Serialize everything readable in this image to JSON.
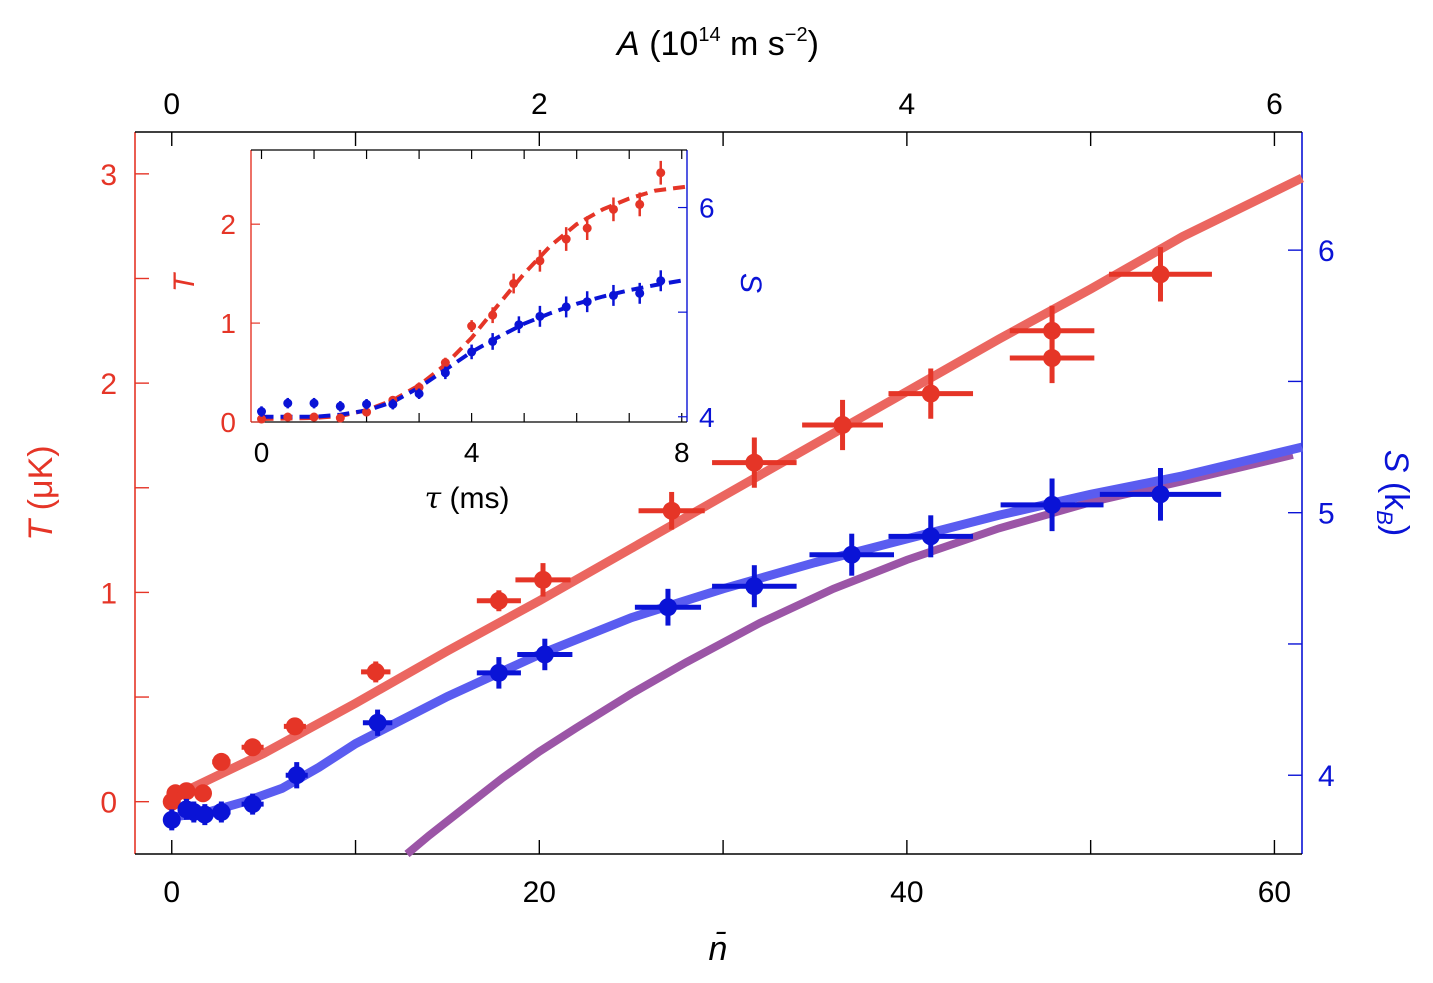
{
  "chart_data": {
    "type": "scatter",
    "colors": {
      "temperature": "#e53527",
      "temperature_fit": "#eb6660",
      "entropy": "#0a13d6",
      "entropy_fit": "#5a5cf0",
      "entropy_limit": "#9b55a6",
      "frame": "#000000"
    },
    "main": {
      "x_axis": {
        "label": "n̄",
        "range": [
          -2,
          61.5
        ],
        "ticks": [
          0,
          20,
          40,
          60
        ],
        "tick_labels": [
          "0",
          "20",
          "40",
          "60"
        ],
        "minor_ticks": [
          10,
          30,
          50
        ]
      },
      "top_axis": {
        "label_symbol": "A",
        "label_unit": "(10",
        "label_exp": "14",
        "label_unit2": " m s",
        "label_exp2": "−2",
        "label_close": ")",
        "ticks": [
          0,
          2,
          4,
          6
        ],
        "tick_labels": [
          "0",
          "2",
          "4",
          "6"
        ],
        "minor_ticks": [
          1,
          3,
          5,
          7
        ],
        "ratio_n_per_A": 10.0
      },
      "left_axis": {
        "label_symbol": "T",
        "label_unit": " (μK)",
        "range": [
          -0.25,
          3.2
        ],
        "ticks": [
          0,
          1,
          2,
          3
        ],
        "tick_labels": [
          "0",
          "1",
          "2",
          "3"
        ],
        "minor_ticks": [
          0.5,
          1.5,
          2.5
        ]
      },
      "right_axis": {
        "label_symbol": "S",
        "label_open": " (k",
        "label_sub": "B",
        "label_close": ")",
        "range": [
          3.7,
          6.45
        ],
        "ticks": [
          4,
          5,
          6
        ],
        "tick_labels": [
          "4",
          "5",
          "6"
        ],
        "minor_ticks": [
          4.5,
          5.5
        ]
      },
      "temperature_points": [
        {
          "x": 0.0,
          "y": 0.0,
          "xerr": 0.3,
          "yerr": 0.03
        },
        {
          "x": 0.2,
          "y": 0.04,
          "xerr": 0.3,
          "yerr": 0.03
        },
        {
          "x": 0.8,
          "y": 0.05,
          "xerr": 0.3,
          "yerr": 0.03
        },
        {
          "x": 1.7,
          "y": 0.04,
          "xerr": 0.4,
          "yerr": 0.03
        },
        {
          "x": 2.7,
          "y": 0.19,
          "xerr": 0.5,
          "yerr": 0.03
        },
        {
          "x": 4.4,
          "y": 0.26,
          "xerr": 0.6,
          "yerr": 0.03
        },
        {
          "x": 6.7,
          "y": 0.36,
          "xerr": 0.6,
          "yerr": 0.03
        },
        {
          "x": 11.1,
          "y": 0.62,
          "xerr": 0.8,
          "yerr": 0.05
        },
        {
          "x": 17.8,
          "y": 0.96,
          "xerr": 1.2,
          "yerr": 0.05
        },
        {
          "x": 20.2,
          "y": 1.06,
          "xerr": 1.5,
          "yerr": 0.08
        },
        {
          "x": 27.2,
          "y": 1.39,
          "xerr": 1.8,
          "yerr": 0.09
        },
        {
          "x": 31.7,
          "y": 1.62,
          "xerr": 2.3,
          "yerr": 0.12
        },
        {
          "x": 36.5,
          "y": 1.8,
          "xerr": 2.2,
          "yerr": 0.12
        },
        {
          "x": 41.3,
          "y": 1.95,
          "xerr": 2.3,
          "yerr": 0.12
        },
        {
          "x": 47.9,
          "y": 2.25,
          "xerr": 2.3,
          "yerr": 0.12
        },
        {
          "x": 47.9,
          "y": 2.12,
          "xerr": 2.3,
          "yerr": 0.12
        },
        {
          "x": 53.8,
          "y": 2.52,
          "xerr": 2.8,
          "yerr": 0.13
        }
      ],
      "entropy_points": [
        {
          "x": 0.0,
          "y": 3.83,
          "xerr": 0.3,
          "yerr": 0.04
        },
        {
          "x": 0.8,
          "y": 3.87,
          "xerr": 0.3,
          "yerr": 0.04
        },
        {
          "x": 1.2,
          "y": 3.86,
          "xerr": 0.4,
          "yerr": 0.04
        },
        {
          "x": 1.8,
          "y": 3.85,
          "xerr": 0.4,
          "yerr": 0.04
        },
        {
          "x": 2.7,
          "y": 3.86,
          "xerr": 0.5,
          "yerr": 0.04
        },
        {
          "x": 4.4,
          "y": 3.89,
          "xerr": 0.6,
          "yerr": 0.04
        },
        {
          "x": 6.8,
          "y": 4.0,
          "xerr": 0.6,
          "yerr": 0.05
        },
        {
          "x": 11.2,
          "y": 4.2,
          "xerr": 0.8,
          "yerr": 0.05
        },
        {
          "x": 17.8,
          "y": 4.39,
          "xerr": 1.2,
          "yerr": 0.06
        },
        {
          "x": 20.3,
          "y": 4.46,
          "xerr": 1.5,
          "yerr": 0.06
        },
        {
          "x": 27.0,
          "y": 4.64,
          "xerr": 1.8,
          "yerr": 0.07
        },
        {
          "x": 31.7,
          "y": 4.72,
          "xerr": 2.3,
          "yerr": 0.08
        },
        {
          "x": 37.0,
          "y": 4.84,
          "xerr": 2.3,
          "yerr": 0.08
        },
        {
          "x": 41.3,
          "y": 4.91,
          "xerr": 2.3,
          "yerr": 0.08
        },
        {
          "x": 47.9,
          "y": 5.03,
          "xerr": 2.8,
          "yerr": 0.1
        },
        {
          "x": 53.8,
          "y": 5.07,
          "xerr": 3.3,
          "yerr": 0.1
        }
      ],
      "temperature_fit": [
        [
          0,
          0.02
        ],
        [
          5,
          0.23
        ],
        [
          10,
          0.47
        ],
        [
          15,
          0.72
        ],
        [
          20,
          0.96
        ],
        [
          25,
          1.21
        ],
        [
          30,
          1.46
        ],
        [
          35,
          1.71
        ],
        [
          40,
          1.96
        ],
        [
          45,
          2.21
        ],
        [
          50,
          2.45
        ],
        [
          55,
          2.7
        ],
        [
          61.5,
          2.98
        ]
      ],
      "entropy_fit": [
        [
          0,
          3.84
        ],
        [
          1,
          3.85
        ],
        [
          2,
          3.86
        ],
        [
          4,
          3.9
        ],
        [
          6,
          3.95
        ],
        [
          8,
          4.03
        ],
        [
          10,
          4.12
        ],
        [
          15,
          4.3
        ],
        [
          20,
          4.46
        ],
        [
          25,
          4.6
        ],
        [
          30,
          4.71
        ],
        [
          35,
          4.81
        ],
        [
          40,
          4.9
        ],
        [
          45,
          4.99
        ],
        [
          50,
          5.07
        ],
        [
          55,
          5.14
        ],
        [
          61.5,
          5.25
        ]
      ],
      "entropy_limit": [
        [
          12.8,
          3.7
        ],
        [
          14,
          3.77
        ],
        [
          16,
          3.88
        ],
        [
          18,
          3.99
        ],
        [
          20,
          4.09
        ],
        [
          22,
          4.18
        ],
        [
          25,
          4.31
        ],
        [
          28,
          4.43
        ],
        [
          32,
          4.58
        ],
        [
          36,
          4.71
        ],
        [
          40,
          4.82
        ],
        [
          45,
          4.94
        ],
        [
          50,
          5.04
        ],
        [
          55,
          5.12
        ],
        [
          61,
          5.22
        ]
      ]
    },
    "inset": {
      "x_axis": {
        "label_symbol": "τ",
        "label_unit": " (ms)",
        "range": [
          -0.2,
          8.1
        ],
        "ticks": [
          0,
          4,
          8
        ],
        "tick_labels": [
          "0",
          "4",
          "8"
        ],
        "minor_ticks": [
          1,
          2,
          3,
          5,
          6,
          7
        ]
      },
      "left_axis": {
        "label": "T",
        "range": [
          0,
          2.75
        ],
        "ticks": [
          0,
          1,
          2
        ],
        "tick_labels": [
          "0",
          "1",
          "2"
        ]
      },
      "right_axis": {
        "label": "S",
        "range": [
          3.95,
          6.55
        ],
        "ticks": [
          4,
          6
        ],
        "tick_labels": [
          "4",
          "6"
        ],
        "minor_ticks": [
          5
        ]
      },
      "temperature_points": [
        {
          "x": 0.0,
          "y": 0.03,
          "yerr": 0.03
        },
        {
          "x": 0.5,
          "y": 0.05,
          "yerr": 0.03
        },
        {
          "x": 1.0,
          "y": 0.05,
          "yerr": 0.03
        },
        {
          "x": 1.5,
          "y": 0.04,
          "yerr": 0.03
        },
        {
          "x": 2.0,
          "y": 0.1,
          "yerr": 0.04
        },
        {
          "x": 2.5,
          "y": 0.22,
          "yerr": 0.04
        },
        {
          "x": 3.0,
          "y": 0.35,
          "yerr": 0.05
        },
        {
          "x": 3.5,
          "y": 0.6,
          "yerr": 0.05
        },
        {
          "x": 4.0,
          "y": 0.97,
          "yerr": 0.06
        },
        {
          "x": 4.4,
          "y": 1.08,
          "yerr": 0.08
        },
        {
          "x": 4.8,
          "y": 1.4,
          "yerr": 0.1
        },
        {
          "x": 5.3,
          "y": 1.63,
          "yerr": 0.11
        },
        {
          "x": 5.8,
          "y": 1.85,
          "yerr": 0.12
        },
        {
          "x": 6.2,
          "y": 1.96,
          "yerr": 0.12
        },
        {
          "x": 6.7,
          "y": 2.15,
          "yerr": 0.12
        },
        {
          "x": 7.2,
          "y": 2.2,
          "yerr": 0.12
        },
        {
          "x": 7.6,
          "y": 2.52,
          "yerr": 0.12
        }
      ],
      "entropy_points": [
        {
          "x": 0.0,
          "y": 4.05,
          "yerr": 0.05
        },
        {
          "x": 0.5,
          "y": 4.13,
          "yerr": 0.05
        },
        {
          "x": 1.0,
          "y": 4.13,
          "yerr": 0.05
        },
        {
          "x": 1.5,
          "y": 4.1,
          "yerr": 0.05
        },
        {
          "x": 2.0,
          "y": 4.12,
          "yerr": 0.05
        },
        {
          "x": 2.5,
          "y": 4.12,
          "yerr": 0.05
        },
        {
          "x": 3.0,
          "y": 4.22,
          "yerr": 0.05
        },
        {
          "x": 3.5,
          "y": 4.42,
          "yerr": 0.06
        },
        {
          "x": 4.0,
          "y": 4.62,
          "yerr": 0.07
        },
        {
          "x": 4.4,
          "y": 4.72,
          "yerr": 0.08
        },
        {
          "x": 4.9,
          "y": 4.88,
          "yerr": 0.08
        },
        {
          "x": 5.3,
          "y": 4.96,
          "yerr": 0.1
        },
        {
          "x": 5.8,
          "y": 5.05,
          "yerr": 0.1
        },
        {
          "x": 6.2,
          "y": 5.1,
          "yerr": 0.1
        },
        {
          "x": 6.7,
          "y": 5.16,
          "yerr": 0.1
        },
        {
          "x": 7.2,
          "y": 5.18,
          "yerr": 0.1
        },
        {
          "x": 7.6,
          "y": 5.3,
          "yerr": 0.1
        }
      ],
      "temperature_fit": [
        [
          0,
          0.03
        ],
        [
          1,
          0.04
        ],
        [
          1.5,
          0.06
        ],
        [
          2,
          0.12
        ],
        [
          2.5,
          0.22
        ],
        [
          3,
          0.37
        ],
        [
          3.5,
          0.58
        ],
        [
          4,
          0.85
        ],
        [
          4.5,
          1.18
        ],
        [
          5,
          1.5
        ],
        [
          5.5,
          1.78
        ],
        [
          6,
          2.0
        ],
        [
          6.5,
          2.15
        ],
        [
          7,
          2.26
        ],
        [
          7.5,
          2.34
        ],
        [
          8.1,
          2.38
        ]
      ],
      "entropy_fit": [
        [
          0,
          4.0
        ],
        [
          1,
          4.0
        ],
        [
          1.5,
          4.02
        ],
        [
          2,
          4.06
        ],
        [
          2.5,
          4.14
        ],
        [
          3,
          4.28
        ],
        [
          3.5,
          4.45
        ],
        [
          4,
          4.62
        ],
        [
          4.5,
          4.76
        ],
        [
          5,
          4.89
        ],
        [
          5.5,
          4.99
        ],
        [
          6,
          5.08
        ],
        [
          6.5,
          5.15
        ],
        [
          7,
          5.21
        ],
        [
          7.5,
          5.26
        ],
        [
          8.1,
          5.31
        ]
      ]
    }
  }
}
